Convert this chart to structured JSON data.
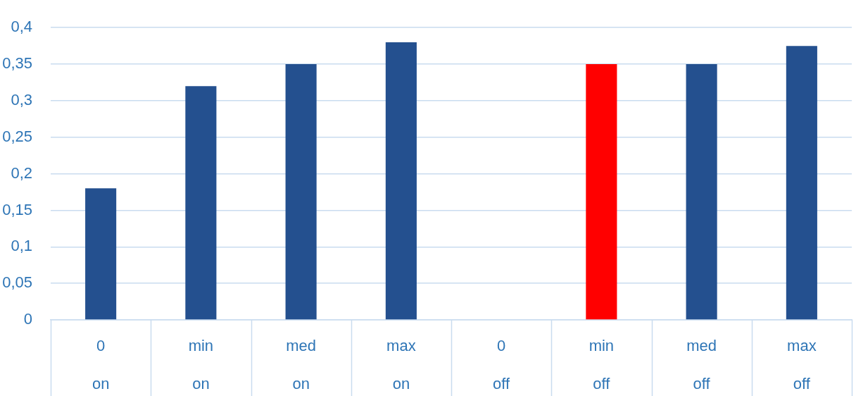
{
  "chart_data": {
    "type": "bar",
    "categories": [
      "0\non",
      "min\non",
      "med\non",
      "max\non",
      "0\noff",
      "min\noff",
      "med\noff",
      "max\noff"
    ],
    "values": [
      0.18,
      0.32,
      0.35,
      0.38,
      0,
      0.35,
      0.35,
      0.375
    ],
    "colors": [
      "#24508f",
      "#24508f",
      "#24508f",
      "#24508f",
      "#24508f",
      "#ff0000",
      "#24508f",
      "#24508f"
    ],
    "ylim": [
      0,
      0.4
    ],
    "yticks": [
      0,
      {
        "value": 0.05,
        "label": "0,05"
      },
      {
        "value": 0.1,
        "label": "0,1"
      },
      {
        "value": 0.15,
        "label": "0,15"
      },
      {
        "value": 0.2,
        "label": "0,2"
      },
      {
        "value": 0.25,
        "label": "0,25"
      },
      {
        "value": 0.3,
        "label": "0,3"
      },
      {
        "value": 0.35,
        "label": "0,35"
      },
      {
        "value": 0.4,
        "label": "0,4"
      }
    ],
    "grid": "y"
  }
}
